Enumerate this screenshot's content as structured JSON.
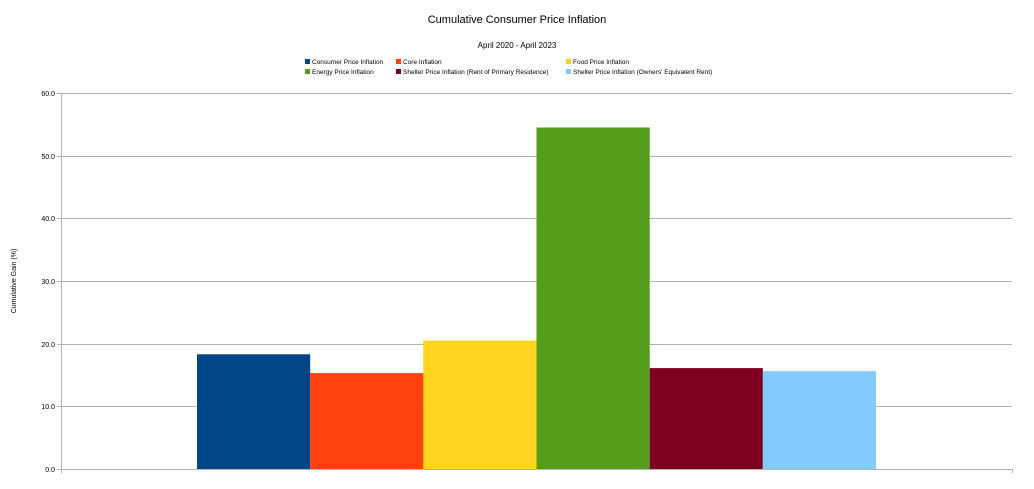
{
  "chart_data": {
    "type": "bar",
    "title": "Cumulative Consumer Price Inflation",
    "subtitle": "April 2020 - April 2023",
    "xlabel": "",
    "ylabel": "Cumulative Gain (%)",
    "ylim": [
      0,
      60
    ],
    "yticks": [
      "0.0",
      "10.0",
      "20.0",
      "30.0",
      "40.0",
      "50.0",
      "60.0"
    ],
    "grid": true,
    "legend_position": "top",
    "categories": [
      ""
    ],
    "series": [
      {
        "name": "Consumer Price Inflation",
        "values": [
          18.3
        ],
        "color": "#004586"
      },
      {
        "name": "Core Inflation",
        "values": [
          15.3
        ],
        "color": "#ff420e"
      },
      {
        "name": "Food Price Inflation",
        "values": [
          20.5
        ],
        "color": "#ffd320"
      },
      {
        "name": "Energy Price Inflation",
        "values": [
          54.5
        ],
        "color": "#579d1c"
      },
      {
        "name": "Shelter Price Inflation (Rent of Primary Residence)",
        "values": [
          16.1
        ],
        "color": "#7e0021"
      },
      {
        "name": "Shelter Price Inflation (Owners' Equivalent Rent)",
        "values": [
          15.6
        ],
        "color": "#83caff"
      }
    ]
  }
}
